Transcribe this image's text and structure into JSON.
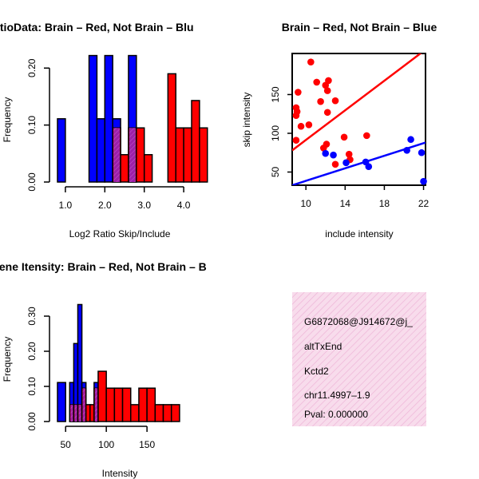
{
  "colors": {
    "red": "#ff0000",
    "blue": "#0000ff",
    "overlap": "#9c1fa8",
    "pink_bg": "#f7d6ea",
    "pval_text": "#aa0000"
  },
  "chart_data": [
    {
      "id": "ratio-hist",
      "type": "histogram",
      "title": "RatioData: Brain – Red, Not Brain – Blu",
      "xlabel": "Log2 Ratio Skip/Include",
      "ylabel": "Frequency",
      "xlim": [
        0.8,
        4.2
      ],
      "ylim": [
        0,
        0.22
      ],
      "xticks": [
        1.0,
        2.0,
        3.0,
        4.0
      ],
      "xtick_labels": [
        "1.0",
        "2.0",
        "3.0",
        "4.0"
      ],
      "yticks": [
        0.0,
        0.1,
        0.2
      ],
      "ytick_labels": [
        "0.00",
        "0.10",
        "0.20"
      ],
      "series": [
        {
          "name": "Not Brain",
          "color": "blue",
          "bins": [
            [
              0.8,
              1.0,
              0.111
            ],
            [
              1.6,
              1.8,
              0.222
            ],
            [
              1.8,
              2.0,
              0.111
            ],
            [
              2.0,
              2.2,
              0.222
            ],
            [
              2.2,
              2.4,
              0.111
            ],
            [
              2.4,
              2.6,
              0.0
            ],
            [
              2.6,
              2.8,
              0.222
            ]
          ]
        },
        {
          "name": "Brain",
          "color": "red",
          "bins": [
            [
              2.2,
              2.4,
              0.095
            ],
            [
              2.4,
              2.6,
              0.048
            ],
            [
              2.6,
              2.8,
              0.095
            ],
            [
              2.8,
              3.0,
              0.095
            ],
            [
              3.0,
              3.2,
              0.048
            ],
            [
              3.6,
              3.8,
              0.19
            ],
            [
              3.8,
              4.0,
              0.095
            ],
            [
              4.0,
              4.2,
              0.095
            ],
            [
              4.2,
              4.4,
              0.143
            ],
            [
              4.4,
              4.6,
              0.095
            ]
          ]
        }
      ]
    },
    {
      "id": "scatter",
      "type": "scatter",
      "title": "Brain – Red, Not Brain – Blue",
      "xlabel": "include intensity",
      "ylabel": "skip intensity",
      "xlim": [
        8.6,
        22.2
      ],
      "ylim": [
        33,
        203
      ],
      "xticks": [
        10,
        14,
        18,
        22
      ],
      "xtick_labels": [
        "10",
        "14",
        "18",
        "22"
      ],
      "yticks": [
        50,
        100,
        150
      ],
      "ytick_labels": [
        "50",
        "100",
        "150"
      ],
      "series": [
        {
          "name": "Brain",
          "color": "red",
          "points": [
            [
              10.5,
              192
            ],
            [
              9.2,
              153
            ],
            [
              11.1,
              166
            ],
            [
              12.3,
              168
            ],
            [
              12.0,
              162
            ],
            [
              12.2,
              155
            ],
            [
              11.5,
              141
            ],
            [
              13.0,
              142
            ],
            [
              9.0,
              133
            ],
            [
              9.1,
              128
            ],
            [
              9.0,
              123
            ],
            [
              12.2,
              127
            ],
            [
              9.5,
              109
            ],
            [
              10.3,
              111
            ],
            [
              12.1,
              86
            ],
            [
              11.8,
              81
            ],
            [
              13.9,
              95
            ],
            [
              16.2,
              97
            ],
            [
              9.0,
              91
            ],
            [
              14.4,
              73
            ],
            [
              14.5,
              66
            ],
            [
              13.0,
              60
            ]
          ]
        },
        {
          "name": "Not Brain",
          "color": "blue",
          "points": [
            [
              12.0,
              74
            ],
            [
              12.8,
              72
            ],
            [
              14.1,
              62
            ],
            [
              16.1,
              63
            ],
            [
              16.4,
              57
            ],
            [
              20.3,
              78
            ],
            [
              20.7,
              92
            ],
            [
              21.8,
              75
            ],
            [
              22.0,
              38
            ]
          ]
        }
      ],
      "lines": [
        {
          "name": "Brain fit",
          "color": "red",
          "from": [
            8.6,
            78
          ],
          "to": [
            22.2,
            208
          ]
        },
        {
          "name": "Not Brain fit",
          "color": "blue",
          "from": [
            8.6,
            33
          ],
          "to": [
            22.2,
            88
          ]
        }
      ]
    },
    {
      "id": "intensity-hist",
      "type": "histogram",
      "title": "Gene Itensity: Brain – Red, Not Brain – B",
      "xlabel": "Intensity",
      "ylabel": "Frequency",
      "xlim": [
        40,
        195
      ],
      "ylim": [
        0,
        0.35
      ],
      "xticks": [
        50,
        100,
        150
      ],
      "xtick_labels": [
        "50",
        "100",
        "150"
      ],
      "yticks": [
        0.0,
        0.1,
        0.2,
        0.3
      ],
      "ytick_labels": [
        "0.00",
        "0.10",
        "0.20",
        "0.30"
      ],
      "series": [
        {
          "name": "Not Brain",
          "color": "blue",
          "bins": [
            [
              40,
              50,
              0.111
            ],
            [
              55,
              60,
              0.111
            ],
            [
              60,
              65,
              0.222
            ],
            [
              65,
              70,
              0.333
            ],
            [
              70,
              75,
              0.111
            ],
            [
              75,
              80,
              0.0
            ],
            [
              80,
              85,
              0.0
            ],
            [
              85,
              90,
              0.111
            ]
          ]
        },
        {
          "name": "Brain",
          "color": "red",
          "bins": [
            [
              55,
              60,
              0.048
            ],
            [
              60,
              65,
              0.048
            ],
            [
              65,
              70,
              0.048
            ],
            [
              70,
              75,
              0.095
            ],
            [
              75,
              80,
              0.048
            ],
            [
              80,
              85,
              0.048
            ],
            [
              85,
              90,
              0.095
            ],
            [
              90,
              100,
              0.143
            ],
            [
              100,
              110,
              0.095
            ],
            [
              110,
              120,
              0.095
            ],
            [
              120,
              130,
              0.095
            ],
            [
              130,
              140,
              0.048
            ],
            [
              140,
              150,
              0.095
            ],
            [
              150,
              160,
              0.095
            ],
            [
              160,
              170,
              0.048
            ],
            [
              170,
              180,
              0.048
            ],
            [
              180,
              190,
              0.048
            ]
          ]
        }
      ]
    }
  ],
  "info_box": {
    "id_line": "G6872068@J914672@j_",
    "type": "altTxEnd",
    "gene": "Kctd2",
    "locus": "chr11.4997–1.9",
    "pval": "Pval: 0.000000"
  }
}
